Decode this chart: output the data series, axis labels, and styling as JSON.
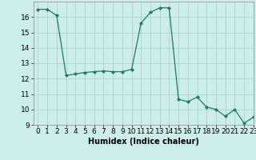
{
  "x": [
    0,
    1,
    2,
    3,
    4,
    5,
    6,
    7,
    8,
    9,
    10,
    11,
    12,
    13,
    14,
    15,
    16,
    17,
    18,
    19,
    20,
    21,
    22,
    23
  ],
  "y": [
    16.5,
    16.5,
    16.1,
    12.2,
    12.3,
    12.4,
    12.45,
    12.5,
    12.45,
    12.45,
    12.6,
    15.6,
    16.3,
    16.6,
    16.6,
    10.65,
    10.5,
    10.8,
    10.15,
    10.0,
    9.55,
    10.0,
    9.1,
    9.5
  ],
  "line_color": "#1a7a6e",
  "marker": "D",
  "marker_size": 2.0,
  "bg_color": "#cceeea",
  "grid_color": "#aad4cc",
  "xlabel": "Humidex (Indice chaleur)",
  "xlim": [
    -0.5,
    23
  ],
  "ylim": [
    9,
    17
  ],
  "yticks": [
    9,
    10,
    11,
    12,
    13,
    14,
    15,
    16
  ],
  "xticks": [
    0,
    1,
    2,
    3,
    4,
    5,
    6,
    7,
    8,
    9,
    10,
    11,
    12,
    13,
    14,
    15,
    16,
    17,
    18,
    19,
    20,
    21,
    22,
    23
  ],
  "label_fontsize": 7,
  "tick_fontsize": 6.5
}
